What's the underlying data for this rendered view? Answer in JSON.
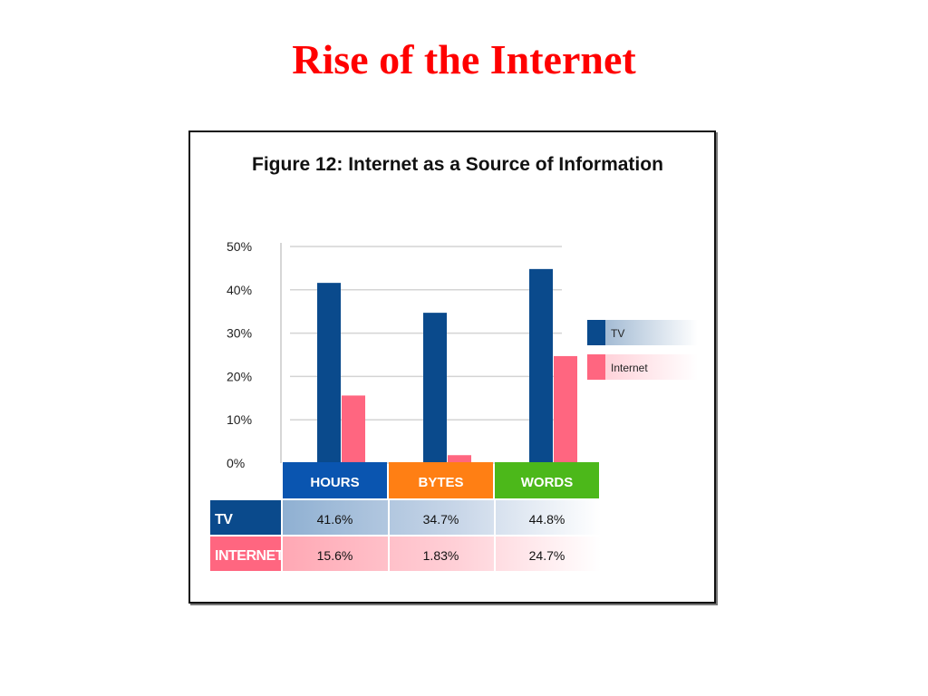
{
  "slide": {
    "title": "Rise of the Internet"
  },
  "colors": {
    "tv": "#0a4a8c",
    "internet": "#ff6680",
    "hours_header": "#0a55b0",
    "bytes_header": "#ff7f14",
    "words_header": "#4cb81a",
    "title_red": "#ff0000"
  },
  "chart_data": {
    "type": "bar",
    "title": "Figure 12:  Internet as a Source of Information",
    "categories": [
      "HOURS",
      "BYTES",
      "WORDS"
    ],
    "series": [
      {
        "name": "TV",
        "values": [
          41.6,
          34.7,
          44.8
        ]
      },
      {
        "name": "Internet",
        "values": [
          15.6,
          1.83,
          24.7
        ]
      }
    ],
    "ylim": [
      0,
      50
    ],
    "yticks": [
      0,
      10,
      20,
      30,
      40,
      50
    ],
    "ytick_labels": [
      "0%",
      "10%",
      "20%",
      "30%",
      "40%",
      "50%"
    ],
    "grid": true,
    "legend_position": "right",
    "table": {
      "row_labels": [
        "TV",
        "INTERNET"
      ],
      "cells": [
        [
          "41.6%",
          "34.7%",
          "44.8%"
        ],
        [
          "15.6%",
          "1.83%",
          "24.7%"
        ]
      ]
    }
  }
}
